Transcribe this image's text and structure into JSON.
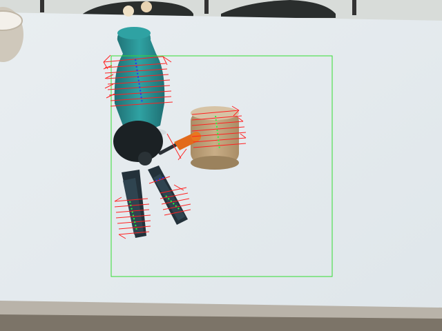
{
  "scene": {
    "objects": [
      {
        "name": "bottle",
        "color": "#2a8c8e"
      },
      {
        "name": "tape-roll",
        "color": "#b59a74"
      },
      {
        "name": "pliers",
        "color": "#1f2a2e"
      },
      {
        "name": "screwdriver",
        "color": "#e26a1c"
      }
    ],
    "overlay_colors": {
      "roi_box": "#33dd33",
      "grasp_lines": "#ff2020",
      "axis_blue": "#2030ff",
      "axis_green": "#20ff40"
    }
  }
}
